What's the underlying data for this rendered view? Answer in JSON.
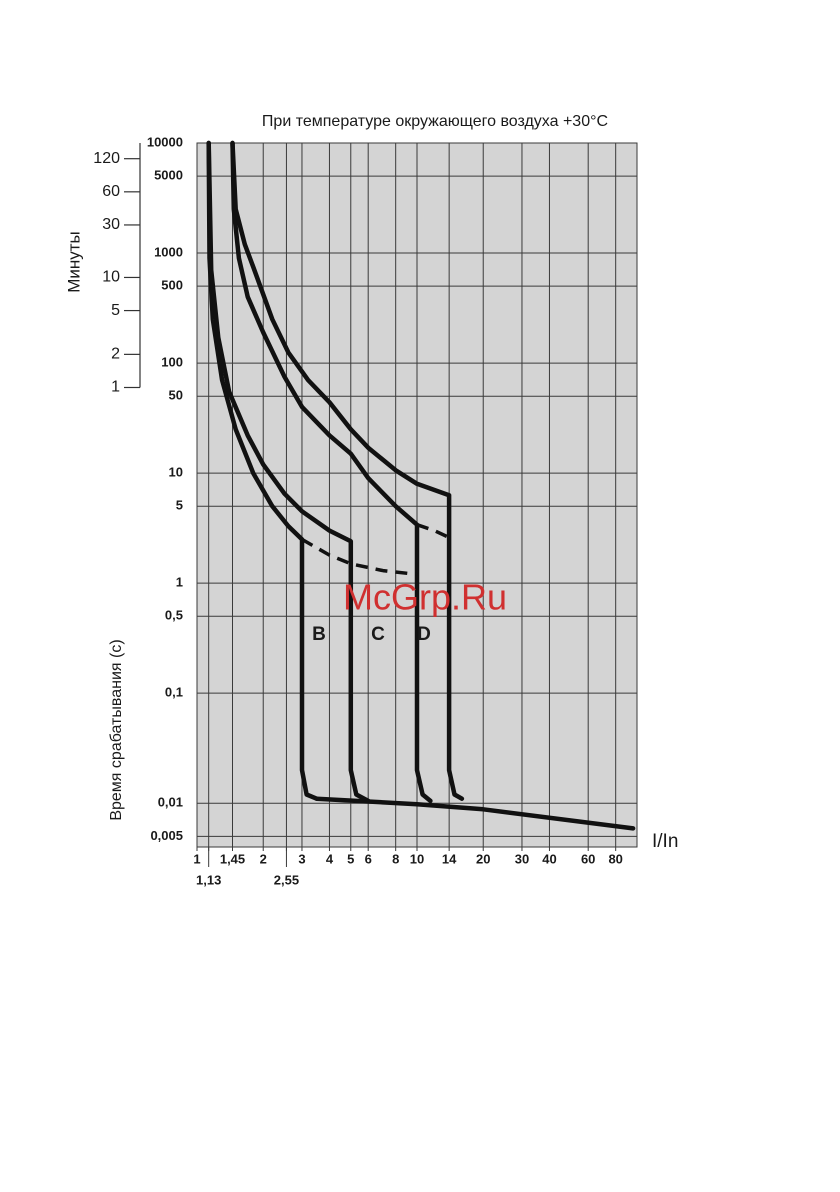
{
  "chart_data": {
    "type": "line",
    "title": "При температуре окружающего воздуха +30°C",
    "y_label": "Время срабатывания (с)",
    "y2_label": "Минуты",
    "x_label": "I/In",
    "annotations": [
      "B",
      "C",
      "D",
      "McGrp.Ru"
    ],
    "log_x": true,
    "log_y": true,
    "grid": true,
    "xlim": [
      1,
      100
    ],
    "xticks": [
      1,
      {
        "value": 1.13,
        "label": "1,13"
      },
      {
        "value": 1.45,
        "label": "1,45"
      },
      2,
      {
        "value": 2.55,
        "label": "2,55"
      },
      3,
      4,
      5,
      6,
      8,
      10,
      14,
      20,
      30,
      40,
      60,
      80
    ],
    "ylim": [
      0.004,
      10000
    ],
    "yticks": [
      10000,
      5000,
      1000,
      500,
      100,
      50,
      10,
      5,
      1,
      {
        "value": 0.5,
        "label": "0,5"
      },
      {
        "value": 0.1,
        "label": "0,1"
      },
      {
        "value": 0.01,
        "label": "0,01"
      },
      {
        "value": 0.005,
        "label": "0,005"
      }
    ],
    "y2lim": [
      6.67e-05,
      166.67
    ],
    "y2ticks": [
      120,
      60,
      30,
      10,
      5,
      2,
      1
    ],
    "series": [
      {
        "color": "#111111",
        "dashed": false,
        "x": [
          1.13,
          1.14,
          1.18,
          1.3,
          1.5,
          1.8,
          2.2,
          2.6,
          3,
          3,
          3.15,
          3.5
        ],
        "values": [
          10000,
          900,
          250,
          70,
          25,
          10,
          5,
          3.3,
          2.5,
          0.02,
          0.012,
          0.011
        ]
      },
      {
        "color": "#111111",
        "dashed": false,
        "x": [
          1.13,
          1.16,
          1.25,
          1.4,
          1.7,
          2,
          2.5,
          3,
          4,
          5,
          5,
          5.3,
          6
        ],
        "values": [
          10000,
          700,
          170,
          55,
          22,
          12,
          6.5,
          4.5,
          3,
          2.4,
          0.02,
          0.012,
          0.0105
        ]
      },
      {
        "color": "#111111",
        "dashed": false,
        "x": [
          1.45,
          1.47,
          1.55,
          1.7,
          2,
          2.5,
          3,
          4,
          5,
          6,
          8,
          10,
          10,
          10.6,
          11.5
        ],
        "values": [
          10000,
          2500,
          900,
          400,
          190,
          75,
          40,
          22,
          15,
          9,
          5,
          3.4,
          0.02,
          0.012,
          0.0105
        ]
      },
      {
        "color": "#111111",
        "dashed": false,
        "x": [
          1.45,
          1.5,
          1.65,
          1.8,
          2.2,
          2.6,
          3.2,
          4,
          5,
          6,
          8,
          10,
          14,
          14,
          14.8,
          16
        ],
        "values": [
          10000,
          2500,
          1200,
          750,
          250,
          125,
          70,
          44,
          25,
          17,
          10.6,
          8,
          6.3,
          0.02,
          0.012,
          0.011
        ]
      },
      {
        "color": "#111111",
        "dashed": true,
        "x": [
          3,
          4,
          5,
          7,
          10
        ],
        "values": [
          2.5,
          1.8,
          1.5,
          1.3,
          1.2
        ]
      },
      {
        "color": "#111111",
        "dashed": true,
        "x": [
          10,
          12,
          14
        ],
        "values": [
          3.4,
          3,
          2.6
        ]
      },
      {
        "color": "#111111",
        "dashed": false,
        "x": [
          3.5,
          10,
          20,
          96
        ],
        "values": [
          0.011,
          0.0098,
          0.0088,
          0.0059
        ]
      }
    ]
  }
}
